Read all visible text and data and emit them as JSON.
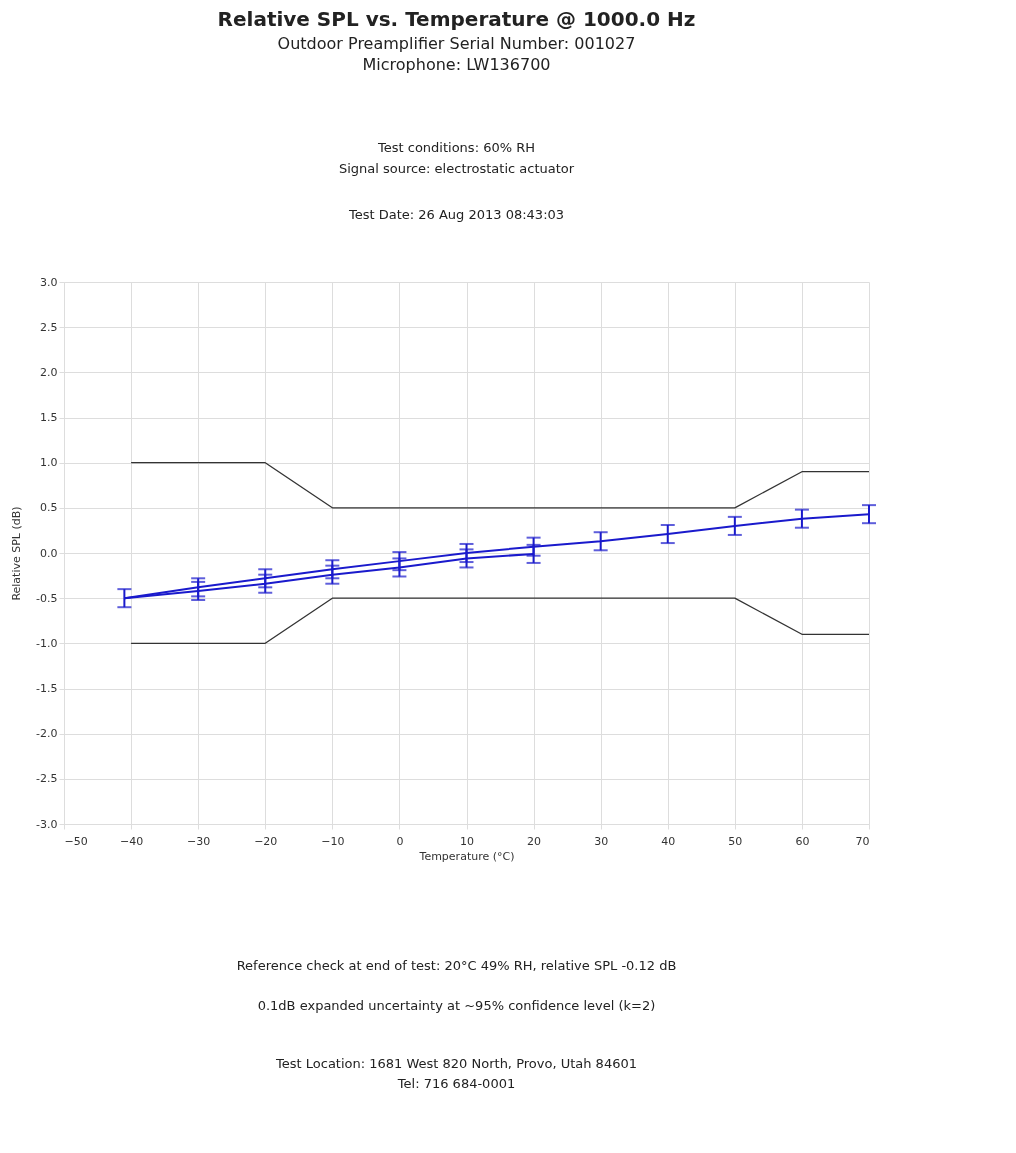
{
  "chart_data": {
    "type": "line",
    "title": "Relative SPL vs. Temperature @ 1000.0 Hz",
    "subtitle": [
      "Outdoor Preamplifier Serial Number: 001027",
      "Microphone: LW136700"
    ],
    "xlabel": "Temperature (°C)",
    "ylabel": "Relative SPL (dB)",
    "annotations": [
      "Test conditions: 60% RH",
      "Signal source: electrostatic actuator",
      "Test Date: 26 Aug 2013 08:43:03",
      "Reference check at end of test: 20°C 49% RH, relative SPL -0.12 dB",
      "0.1dB expanded uncertainty at ~95% confidence level (k=2)",
      "Test Location: 1681 West 820 North, Provo, Utah 84601",
      "Tel: 716 684-0001"
    ],
    "xlim": [
      -50,
      70
    ],
    "xticks": [
      -50,
      -40,
      -30,
      -20,
      -10,
      0,
      10,
      20,
      30,
      40,
      50,
      60,
      70
    ],
    "ylim": [
      -3,
      3
    ],
    "yticks": [
      {
        "value": -3,
        "label": "-3.0"
      },
      {
        "value": -2.5,
        "label": "-2.5"
      },
      {
        "value": -2,
        "label": "-2.0"
      },
      {
        "value": -1.5,
        "label": "-1.5"
      },
      {
        "value": -1,
        "label": "-1.0"
      },
      {
        "value": -0.5,
        "label": "-0.5"
      },
      {
        "value": 0,
        "label": "0.0"
      },
      {
        "value": 0.5,
        "label": "0.5"
      },
      {
        "value": 1,
        "label": "1.0"
      },
      {
        "value": 1.5,
        "label": "1.5"
      },
      {
        "value": 2,
        "label": "2.0"
      },
      {
        "value": 2.5,
        "label": "2.5"
      },
      {
        "value": 3,
        "label": "3.0"
      }
    ],
    "grid": true,
    "series": [
      {
        "type": "line",
        "color": "#333333",
        "x": [
          -40,
          -20,
          -10,
          50,
          60,
          70
        ],
        "values": [
          1,
          1,
          0.5,
          0.5,
          0.9,
          0.9
        ]
      },
      {
        "type": "line",
        "color": "#333333",
        "x": [
          -40,
          -20,
          -10,
          50,
          60,
          70
        ],
        "values": [
          -1,
          -1,
          -0.5,
          -0.5,
          -0.9,
          -0.9
        ]
      },
      {
        "type": "line",
        "color": "#1a1acc",
        "x": [
          -41,
          -30,
          -20,
          -10,
          0,
          10,
          20,
          30,
          40,
          50,
          60,
          70
        ],
        "values": [
          -0.5,
          -0.38,
          -0.28,
          -0.18,
          -0.09,
          0.0,
          0.07,
          0.13,
          0.21,
          0.3,
          0.38,
          0.43
        ],
        "errors": [
          0.1,
          0.1,
          0.1,
          0.1,
          0.1,
          0.1,
          0.1,
          0.1,
          0.1,
          0.1,
          0.1,
          0.1
        ]
      },
      {
        "type": "line",
        "color": "#1a1acc",
        "x": [
          -41,
          -30,
          -20,
          -10,
          0,
          10,
          20
        ],
        "values": [
          -0.5,
          -0.42,
          -0.34,
          -0.24,
          -0.16,
          -0.06,
          -0.01
        ],
        "errors": [
          null,
          0.1,
          0.1,
          0.1,
          0.1,
          0.1,
          0.1
        ]
      }
    ]
  }
}
